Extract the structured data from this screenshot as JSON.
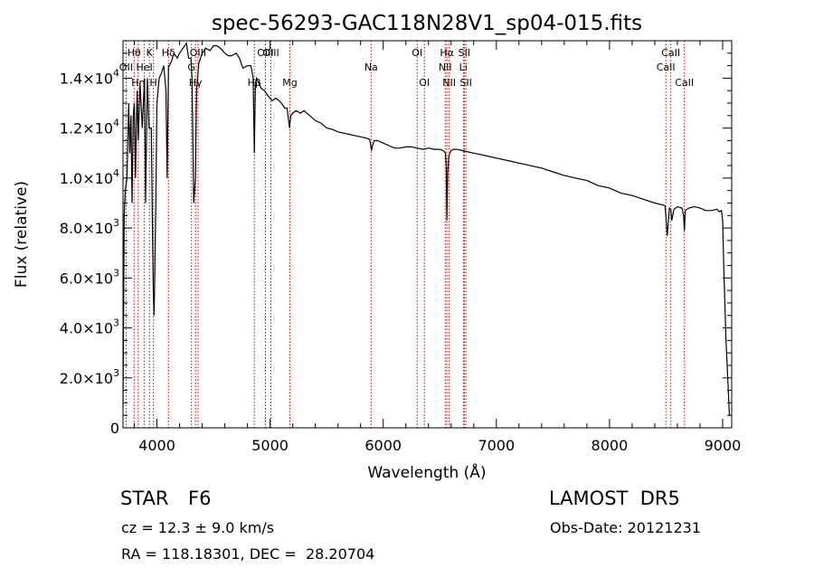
{
  "chart_data": {
    "type": "line",
    "title": "spec-56293-GAC118N28V1_sp04-015.fits",
    "xlabel": "Wavelength (Å)",
    "ylabel": "Flux (relative)",
    "xlim": [
      3700,
      9080
    ],
    "ylim": [
      0,
      15500
    ],
    "xticks": [
      4000,
      5000,
      6000,
      7000,
      8000,
      9000
    ],
    "xtick_labels": [
      "4000",
      "5000",
      "6000",
      "7000",
      "8000",
      "9000"
    ],
    "yticks": [
      0,
      2000,
      4000,
      6000,
      8000,
      10000,
      12000,
      14000
    ],
    "ytick_labels": [
      {
        "mant": "0",
        "exp": ""
      },
      {
        "mant": "2.0×10",
        "exp": "3"
      },
      {
        "mant": "4.0×10",
        "exp": "3"
      },
      {
        "mant": "6.0×10",
        "exp": "3"
      },
      {
        "mant": "8.0×10",
        "exp": "3"
      },
      {
        "mant": "1.0×10",
        "exp": "4"
      },
      {
        "mant": "1.2×10",
        "exp": "4"
      },
      {
        "mant": "1.4×10",
        "exp": "4"
      }
    ],
    "grid": false,
    "line_color": "#000000",
    "marker_color": "#cc0000",
    "series": [
      {
        "x": [
          3700,
          3710,
          3720,
          3735,
          3750,
          3760,
          3770,
          3780,
          3790,
          3800,
          3810,
          3825,
          3835,
          3850,
          3870,
          3890,
          3900,
          3915,
          3930,
          3950,
          3960,
          3968,
          3975,
          3990,
          4000,
          4020,
          4040,
          4060,
          4080,
          4090,
          4102,
          4110,
          4130,
          4150,
          4180,
          4200,
          4230,
          4260,
          4280,
          4300,
          4310,
          4325,
          4340,
          4350,
          4370,
          4400,
          4430,
          4470,
          4500,
          4530,
          4560,
          4600,
          4630,
          4660,
          4700,
          4730,
          4760,
          4800,
          4830,
          4850,
          4861,
          4870,
          4880,
          4900,
          4920,
          4950,
          4980,
          5000,
          5020,
          5050,
          5080,
          5100,
          5130,
          5150,
          5172,
          5183,
          5200,
          5230,
          5270,
          5300,
          5350,
          5400,
          5450,
          5500,
          5550,
          5600,
          5650,
          5700,
          5750,
          5800,
          5850,
          5880,
          5890,
          5896,
          5905,
          5920,
          5950,
          6000,
          6050,
          6100,
          6150,
          6200,
          6250,
          6300,
          6350,
          6400,
          6450,
          6500,
          6530,
          6550,
          6557,
          6563,
          6570,
          6580,
          6600,
          6620,
          6650,
          6700,
          6750,
          6800,
          6900,
          7000,
          7100,
          7200,
          7300,
          7400,
          7500,
          7600,
          7700,
          7800,
          7900,
          8000,
          8100,
          8200,
          8300,
          8400,
          8450,
          8490,
          8498,
          8510,
          8530,
          8542,
          8550,
          8570,
          8600,
          8640,
          8655,
          8662,
          8670,
          8700,
          8750,
          8800,
          8850,
          8900,
          8950,
          8970,
          8990,
          9000,
          9010,
          9030,
          9060
        ],
        "y": [
          800,
          8500,
          9500,
          10000,
          13000,
          11000,
          12500,
          9000,
          12500,
          13000,
          10000,
          13500,
          11500,
          13800,
          12000,
          14000,
          9000,
          14000,
          12000,
          12000,
          8200,
          5500,
          4500,
          9000,
          13000,
          14000,
          14200,
          14500,
          13500,
          10000,
          14500,
          14500,
          14700,
          15000,
          14800,
          15000,
          15200,
          15400,
          14800,
          14800,
          14000,
          9000,
          10000,
          13500,
          14600,
          15000,
          15200,
          15100,
          15300,
          15300,
          15200,
          15000,
          14900,
          14900,
          15000,
          14800,
          14400,
          14500,
          14500,
          14000,
          11000,
          13800,
          14000,
          13800,
          13600,
          13500,
          13300,
          13200,
          13100,
          13200,
          13100,
          13000,
          12800,
          12800,
          12000,
          12500,
          12600,
          12700,
          12600,
          12700,
          12500,
          12300,
          12200,
          12000,
          11950,
          11850,
          11800,
          11750,
          11700,
          11650,
          11600,
          11550,
          11300,
          11100,
          11300,
          11500,
          11500,
          11400,
          11300,
          11200,
          11200,
          11250,
          11250,
          11200,
          11150,
          11200,
          11150,
          11150,
          11100,
          11000,
          10500,
          8300,
          10200,
          10900,
          11100,
          11150,
          11150,
          11100,
          11050,
          11000,
          10900,
          10800,
          10700,
          10600,
          10500,
          10400,
          10250,
          10100,
          10000,
          9900,
          9700,
          9600,
          9400,
          9300,
          9150,
          9000,
          8950,
          8900,
          8500,
          7700,
          8800,
          8750,
          8300,
          8750,
          8850,
          8800,
          8500,
          7900,
          8700,
          8800,
          8850,
          8800,
          8700,
          8700,
          8750,
          8650,
          8700,
          8300,
          6500,
          3500,
          500
        ]
      }
    ],
    "lines": [
      {
        "x": 3727,
        "label": "OII",
        "row": 2
      },
      {
        "x": 3798,
        "label": "Hθ",
        "row": 1
      },
      {
        "x": 3835,
        "label": "Hη",
        "row": 3
      },
      {
        "x": 3889,
        "label": "HeI",
        "row": 2
      },
      {
        "x": 3934,
        "label": "K",
        "row": 1
      },
      {
        "x": 3969,
        "label": "H",
        "row": 3
      },
      {
        "x": 4102,
        "label": "Hδ",
        "row": 1
      },
      {
        "x": 4305,
        "label": "G",
        "row": 2
      },
      {
        "x": 4341,
        "label": "Hγ",
        "row": 3
      },
      {
        "x": 4363,
        "label": "OIII",
        "row": 1
      },
      {
        "x": 4861,
        "label": "Hβ",
        "row": 3
      },
      {
        "x": 4959,
        "label": "OIII",
        "row": 1
      },
      {
        "x": 5007,
        "label": "OIII",
        "row": 1
      },
      {
        "x": 5175,
        "label": "Mg",
        "row": 3
      },
      {
        "x": 5893,
        "label": "Na",
        "row": 2
      },
      {
        "x": 6300,
        "label": "OI",
        "row": 1
      },
      {
        "x": 6364,
        "label": "OI",
        "row": 3
      },
      {
        "x": 6548,
        "label": "NII",
        "row": 2
      },
      {
        "x": 6563,
        "label": "Hα",
        "row": 1
      },
      {
        "x": 6583,
        "label": "NII",
        "row": 3
      },
      {
        "x": 6708,
        "label": "Li",
        "row": 2
      },
      {
        "x": 6717,
        "label": "SII",
        "row": 1
      },
      {
        "x": 6731,
        "label": "SII",
        "row": 3
      },
      {
        "x": 8498,
        "label": "CaII",
        "row": 2
      },
      {
        "x": 8542,
        "label": "CaII",
        "row": 1
      },
      {
        "x": 8662,
        "label": "CaII",
        "row": 3
      }
    ]
  },
  "info": {
    "class_label": "STAR",
    "subclass_label": "F6",
    "survey": "LAMOST  DR5",
    "cz": "cz = 12.3 ± 9.0 km/s",
    "obs_date": "Obs-Date: 20121231",
    "radec": "RA = 118.18301, DEC =  28.20704"
  }
}
